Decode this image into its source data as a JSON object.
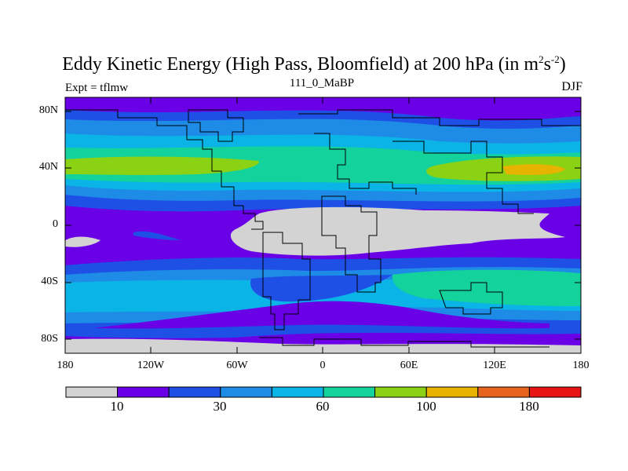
{
  "title": {
    "main": "Eddy Kinetic Energy (High Pass, Bloomfield) at 200 hPa (in m",
    "sup1": "2",
    "mid": "s",
    "sup2": "-2",
    "close": ")"
  },
  "subtitle": "111_0_MaBP",
  "left_label": "Expt = tflmw",
  "right_label": "DJF",
  "y_ticks": [
    "80N",
    "40N",
    "0",
    "40S",
    "80S"
  ],
  "x_ticks": [
    "180",
    "120W",
    "60W",
    "0",
    "60E",
    "120E",
    "180"
  ],
  "colorbar": {
    "colors": [
      "#d3d3d3",
      "#6a00e6",
      "#1e50e6",
      "#1e8ce6",
      "#0ab4e6",
      "#14d29b",
      "#8cd214",
      "#e6b400",
      "#e6641e",
      "#e61414"
    ],
    "labels": [
      "10",
      "30",
      "60",
      "100",
      "180"
    ]
  },
  "map_colors": {
    "ocean_bg": "#6a00e6",
    "coast": "#000000"
  }
}
